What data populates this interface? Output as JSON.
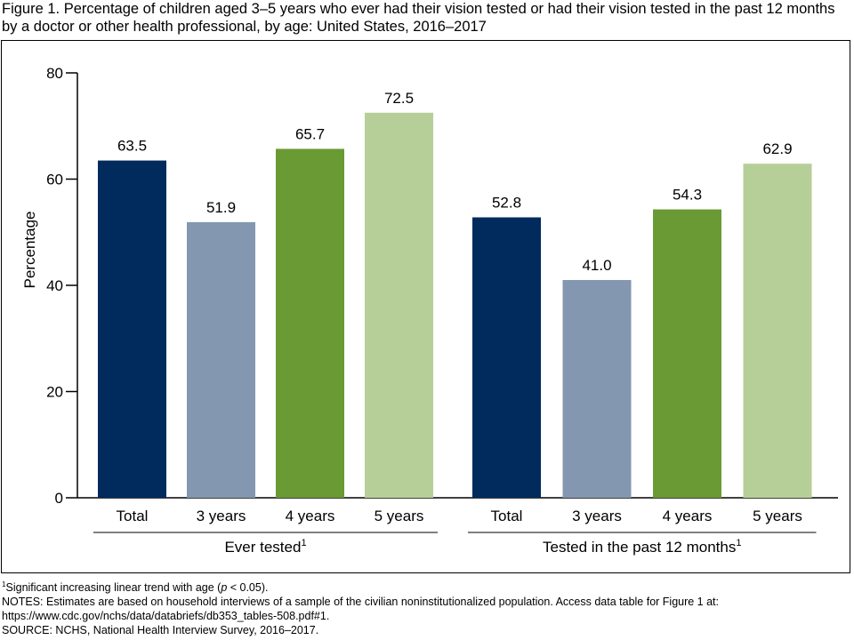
{
  "figure": {
    "title": "Figure 1. Percentage of children aged 3–5 years who ever had their vision tested or had their vision tested in the past 12 months by a doctor or other health professional, by age: United States, 2016–2017"
  },
  "chart_data": {
    "type": "bar",
    "ylabel": "Percentage",
    "ylim": [
      0,
      80
    ],
    "yticks": [
      0,
      20,
      40,
      60,
      80
    ],
    "grid": false,
    "legend": "none",
    "categories": [
      "Total",
      "3 years",
      "4 years",
      "5 years"
    ],
    "groups": [
      {
        "label": "Ever tested",
        "superscript": "1",
        "values": [
          63.5,
          51.9,
          65.7,
          72.5
        ],
        "labels": [
          "63.5",
          "51.9",
          "65.7",
          "72.5"
        ]
      },
      {
        "label": "Tested in the past 12 months",
        "superscript": "1",
        "values": [
          52.8,
          41.0,
          54.3,
          62.9
        ],
        "labels": [
          "52.8",
          "41.0",
          "54.3",
          "62.9"
        ]
      }
    ],
    "colors": [
      "#002b5c",
      "#8397b1",
      "#6a9a34",
      "#b6cf98"
    ]
  },
  "footnotes": {
    "trend_sup": "1",
    "trend_text": "Significant increasing linear trend with age (",
    "trend_p": "p",
    "trend_end": " < 0.05).",
    "notes_line1": "NOTES: Estimates are based on household interviews of a sample of the civilian noninstitutionalized population. Access data table for Figure 1 at:",
    "notes_line2": "https://www.cdc.gov/nchs/data/databriefs/db353_tables-508.pdf#1.",
    "source": "SOURCE: NCHS, National Health Interview Survey, 2016–2017."
  }
}
